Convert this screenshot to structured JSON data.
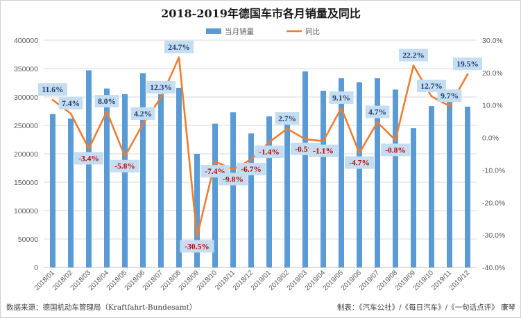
{
  "chart_data": {
    "type": "bar",
    "title": "2018-2019年德国车市各月销量及同比",
    "categories": [
      "2018/01",
      "2018/02",
      "2018/03",
      "2018/04",
      "2018/05",
      "2018/06",
      "2018/07",
      "2018/08",
      "2018/09",
      "2018/10",
      "2018/11",
      "2018/12",
      "2019/01",
      "2019/02",
      "2019/03",
      "2019/04",
      "2019/05",
      "2019/06",
      "2019/07",
      "2019/08",
      "2019/09",
      "2019/10",
      "2019/11",
      "2019/12"
    ],
    "series": [
      {
        "name": "当月销量",
        "type": "bar",
        "axis": "left",
        "color": "#5b9bd5",
        "values": [
          270000,
          262000,
          347000,
          315000,
          305000,
          342000,
          305000,
          316000,
          200000,
          253000,
          273000,
          236000,
          266000,
          256000,
          345000,
          311000,
          333000,
          326000,
          333000,
          313000,
          245000,
          284000,
          295000,
          283000
        ]
      },
      {
        "name": "同比",
        "type": "line",
        "axis": "right",
        "color": "#ed7d31",
        "values": [
          11.6,
          7.4,
          -3.4,
          8.0,
          -5.8,
          4.2,
          12.3,
          24.7,
          -30.5,
          -7.4,
          -9.8,
          -6.7,
          -1.4,
          2.7,
          -0.5,
          -1.1,
          9.1,
          -4.7,
          4.7,
          -0.8,
          22.2,
          12.7,
          9.7,
          19.5
        ]
      }
    ],
    "data_labels": [
      "11.6%",
      "7.4%",
      "-3.4%",
      "8.0%",
      "-5.8%",
      "4.2%",
      "12.3%",
      "24.7%",
      "-30.5%",
      "-7.4%",
      "-9.8%",
      "-6.7%",
      "-1.4%",
      "2.7%",
      "-0.5%",
      "-1.1%",
      "9.1%",
      "-4.7%",
      "4.7%",
      "-0.8%",
      "22.2%",
      "12.7%",
      "9.7%",
      "19.5%"
    ],
    "ylim_left": [
      0,
      400000
    ],
    "yticks_left": [
      "0",
      "50000",
      "100000",
      "150000",
      "200000",
      "250000",
      "300000",
      "350000",
      "400000"
    ],
    "ylim_right": [
      -40,
      30
    ],
    "yticks_right": [
      "-40.0%",
      "-30.0%",
      "-20.0%",
      "-10.0%",
      "0.0%",
      "10.0%",
      "20.0%",
      "30.0%"
    ],
    "grid": true,
    "legend": "top-center"
  },
  "colors": {
    "positive_label": "#1f3b6e",
    "negative_label": "#c00000",
    "label_box": "#c5ddf0"
  },
  "footer": {
    "source": "数据来源：德国机动车管理局（Kraftfahrt-Bundesamt）",
    "credit": "制表：《汽车公社》/《每日汽车》/《一句话点评》 康琴"
  }
}
